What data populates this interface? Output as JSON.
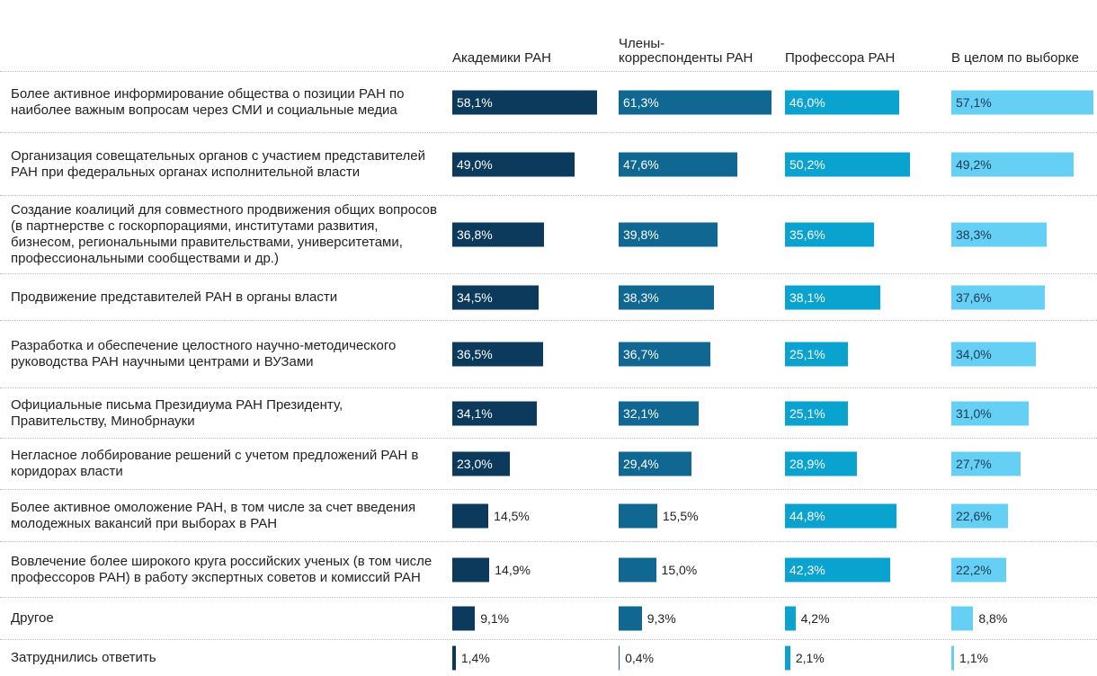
{
  "chart_data": {
    "type": "bar",
    "categories": [
      "Более активное информирование общества о позиции РАН по наиболее важным вопросам через СМИ и социальные медиа",
      "Организация совещательных органов с участием представителей РАН при федеральных органах исполнительной власти",
      "Создание коалиций для совместного продвижения общих вопросов (в партнерстве с госкорпорациями, институтами развития, бизнесом, региональными правительствами, университетами, профессиональными сообществами и др.)",
      "Продвижение представителей РАН в органы власти",
      "Разработка и обеспечение целостного научно-методического руководства РАН научными центрами и ВУЗами",
      "Официальные письма Президиума РАН Президенту, Правительству, Минобрнауки",
      "Негласное лоббирование решений с учетом предложений РАН в коридорах власти",
      "Более активное омоложение РАН, в том числе за счет введения молодежных вакансий при выборах в РАН",
      "Вовлечение более широкого круга российских ученых (в том числе профессоров РАН) в работу экспертных советов и комиссий РАН",
      "Другое",
      "Затруднились ответить"
    ],
    "series": [
      {
        "name": "Академики РАН",
        "color": "#0b3a5d",
        "values": [
          58.1,
          49.0,
          36.8,
          34.5,
          36.5,
          34.1,
          23.0,
          14.5,
          14.9,
          9.1,
          1.4
        ],
        "value_labels": [
          "58,1%",
          "49,0%",
          "36,8%",
          "34,5%",
          "36,5%",
          "34,1%",
          "23,0%",
          "14,5%",
          "14,9%",
          "9,1%",
          "1,4%"
        ]
      },
      {
        "name": "Члены-корреспонденты РАН",
        "color": "#0f6792",
        "values": [
          61.3,
          47.6,
          39.8,
          38.3,
          36.7,
          32.1,
          29.4,
          15.5,
          15.0,
          9.3,
          0.4
        ],
        "value_labels": [
          "61,3%",
          "47,6%",
          "39,8%",
          "38,3%",
          "36,7%",
          "32,1%",
          "29,4%",
          "15,5%",
          "15,0%",
          "9,3%",
          "0,4%"
        ]
      },
      {
        "name": "Профессора РАН",
        "color": "#0aa2cf",
        "values": [
          46.0,
          50.2,
          35.6,
          38.1,
          25.1,
          25.1,
          28.9,
          44.8,
          42.3,
          4.2,
          2.1
        ],
        "value_labels": [
          "46,0%",
          "50,2%",
          "35,6%",
          "38,1%",
          "25,1%",
          "25,1%",
          "28,9%",
          "44,8%",
          "42,3%",
          "4,2%",
          "2,1%"
        ]
      },
      {
        "name": "В целом по выборке",
        "color": "#66cff4",
        "values": [
          57.1,
          49.2,
          38.3,
          37.6,
          34.0,
          31.0,
          27.7,
          22.6,
          22.2,
          8.8,
          1.1
        ],
        "value_labels": [
          "57,1%",
          "49,2%",
          "38,3%",
          "37,6%",
          "34,0%",
          "31,0%",
          "27,7%",
          "22,6%",
          "22,2%",
          "8,8%",
          "1,1%"
        ]
      }
    ]
  }
}
